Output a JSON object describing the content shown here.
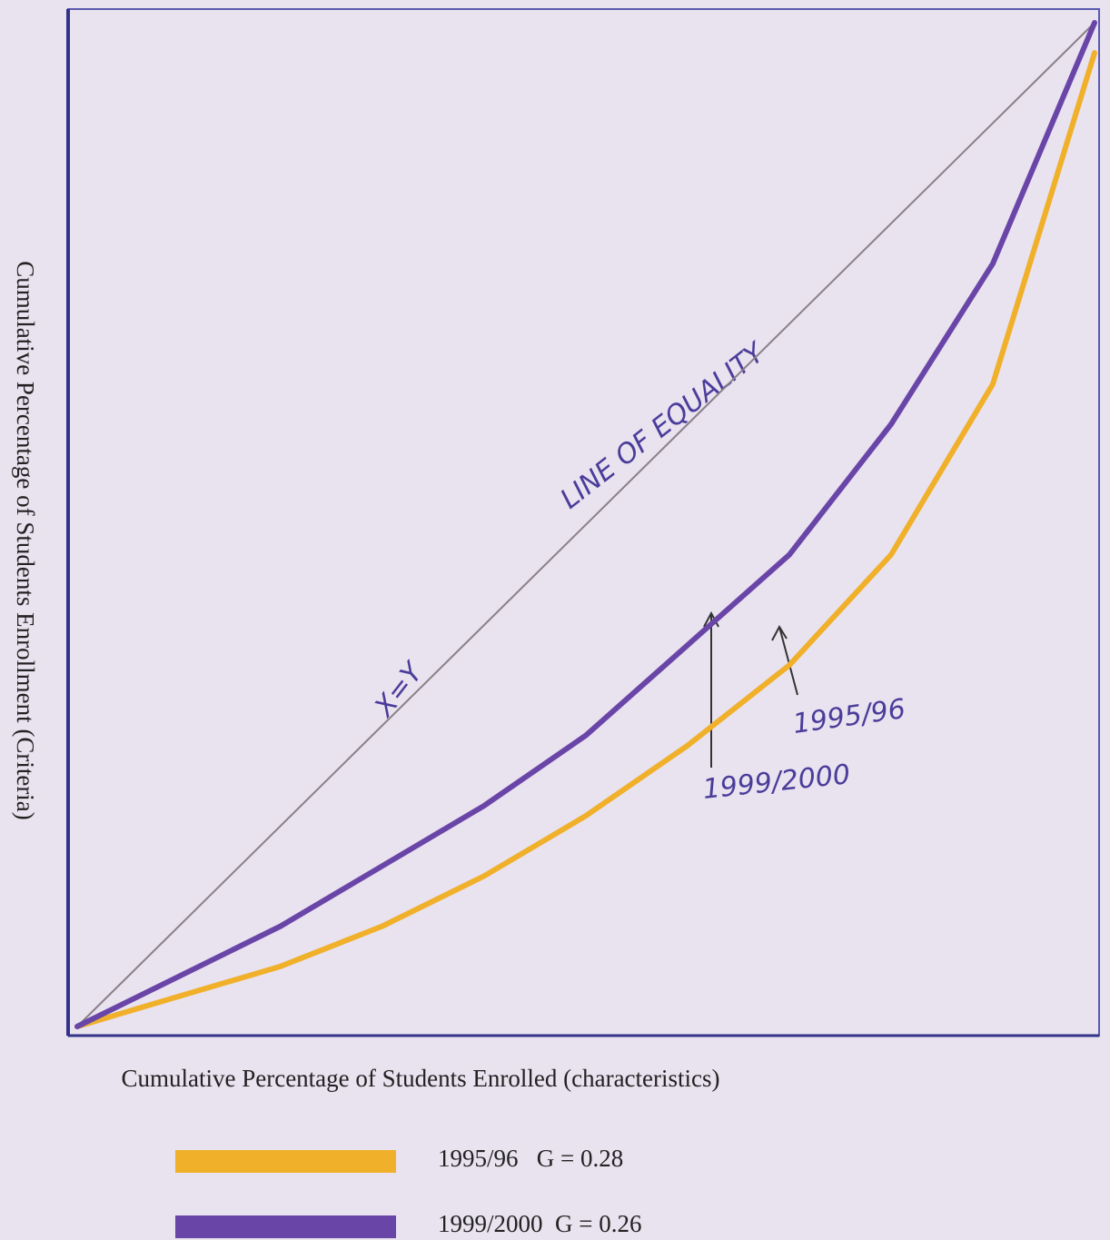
{
  "chart_data": {
    "type": "line",
    "y_label": "Cumulative Percentage of Students Enrollment (Criteria)",
    "x_label": "Cumulative Percentage of Students Enrolled (characteristics)",
    "xlim": [
      0,
      100
    ],
    "ylim": [
      0,
      100
    ],
    "x": [
      0,
      10,
      20,
      30,
      40,
      50,
      60,
      70,
      80,
      90,
      100
    ],
    "equality_line": {
      "x": [
        0,
        100
      ],
      "values": [
        0,
        100
      ],
      "color": "#8a8088"
    },
    "series": [
      {
        "name": "1995/96   G = 0.28",
        "color": "#f0b02a",
        "values": [
          0,
          3,
          6,
          10,
          15,
          21,
          28,
          36,
          47,
          64,
          97
        ]
      },
      {
        "name": "1999/2000  G = 0.26",
        "color": "#6a45a8",
        "values": [
          0,
          5,
          10,
          16,
          22,
          29,
          38,
          47,
          60,
          76,
          100
        ]
      }
    ],
    "annotations": [
      "X=Y",
      "LINE OF EQUALITY",
      "1995/96",
      "1999/2000"
    ]
  }
}
